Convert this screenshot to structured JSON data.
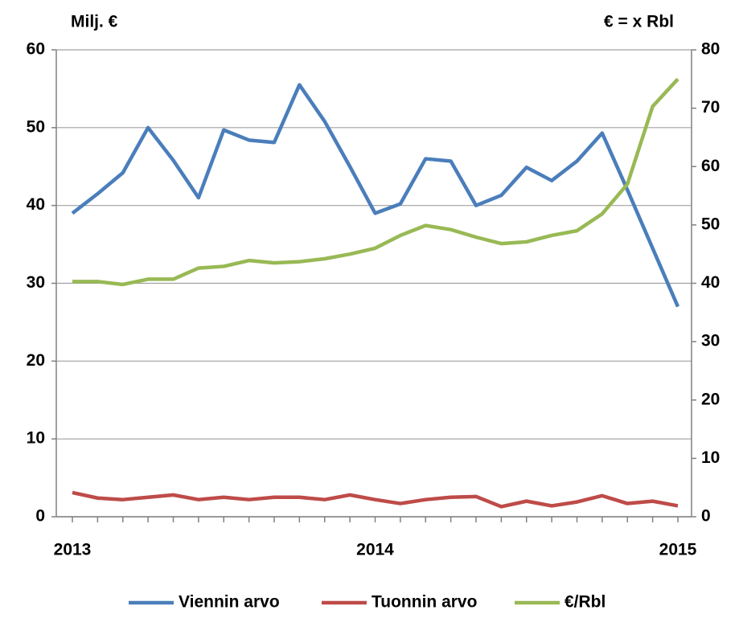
{
  "chart_data": {
    "type": "line",
    "y_label": "Milj. €",
    "y2_label": "€ = x Rbl",
    "categories": [
      "2013",
      null,
      null,
      null,
      null,
      null,
      null,
      null,
      null,
      null,
      null,
      null,
      "2014",
      null,
      null,
      null,
      null,
      null,
      null,
      null,
      null,
      null,
      null,
      null,
      "2015"
    ],
    "series": [
      {
        "name": "Viennin arvo",
        "color": "#4a7ebb",
        "values": [
          39,
          41.5,
          44.2,
          50,
          45.8,
          41,
          49.7,
          48.4,
          48.1,
          55.5,
          50.8,
          45,
          39,
          40.2,
          46,
          45.7,
          40,
          41.3,
          44.9,
          43.2,
          45.7,
          49.3,
          42,
          34.5,
          27
        ]
      },
      {
        "name": "Tuonnin arvo",
        "color": "#be4b48",
        "values": [
          3.1,
          2.4,
          2.2,
          2.5,
          2.8,
          2.2,
          2.5,
          2.2,
          2.5,
          2.5,
          2.2,
          2.8,
          2.2,
          1.7,
          2.2,
          2.5,
          2.6,
          1.3,
          2.0,
          1.4,
          1.9,
          2.7,
          1.7,
          2.0,
          1.4
        ]
      },
      {
        "name": "€/Rbl",
        "color": "#98b954",
        "axis": "y2",
        "values": [
          40.3,
          40.3,
          39.8,
          40.7,
          40.7,
          42.6,
          42.9,
          43.9,
          43.5,
          43.7,
          44.2,
          45.0,
          46.0,
          48.2,
          49.9,
          49.2,
          47.9,
          46.8,
          47.1,
          48.2,
          49.0,
          51.9,
          57.0,
          70.3,
          75.0
        ]
      }
    ],
    "ylim": [
      0,
      60
    ],
    "yticks": [
      0,
      10,
      20,
      30,
      40,
      50,
      60
    ],
    "y2lim": [
      0,
      80
    ],
    "y2ticks": [
      0,
      10,
      20,
      30,
      40,
      50,
      60,
      70,
      80
    ],
    "grid": true,
    "legend": "bottom"
  }
}
